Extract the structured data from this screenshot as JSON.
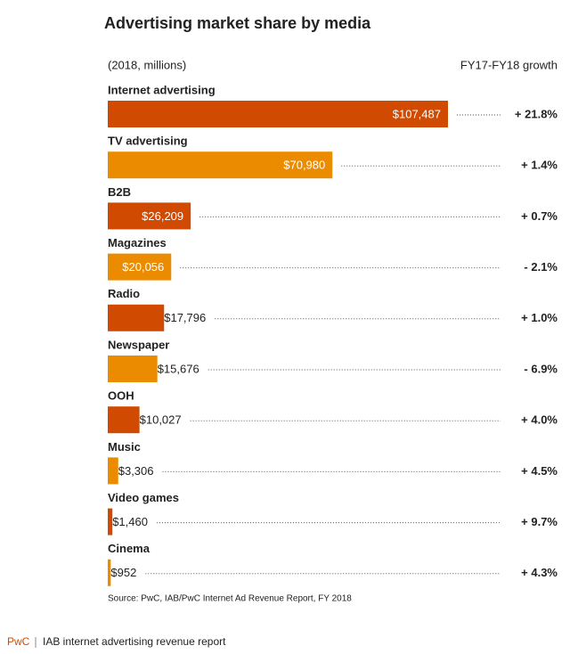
{
  "chart_data": {
    "type": "bar",
    "orientation": "horizontal",
    "title": "Advertising market share by media",
    "subtitle": "(2018, millions)",
    "growth_header": "FY17-FY18 growth",
    "categories": [
      "Internet advertising",
      "TV advertising",
      "B2B",
      "Magazines",
      "Radio",
      "Newspaper",
      "OOH",
      "Music",
      "Video games",
      "Cinema"
    ],
    "values": [
      107487,
      70980,
      26209,
      20056,
      17796,
      15676,
      10027,
      3306,
      1460,
      952
    ],
    "value_labels": [
      "$107,487",
      "$70,980",
      "$26,209",
      "$20,056",
      "$17,796",
      "$15,676",
      "$10,027",
      "$3,306",
      "$1,460",
      "$952"
    ],
    "growth_labels": [
      "+ 21.8%",
      "+ 1.4%",
      "+ 0.7%",
      "- 2.1%",
      "+ 1.0%",
      "- 6.9%",
      "+ 4.0%",
      "+ 4.5%",
      "+ 9.7%",
      "+ 4.3%"
    ],
    "colors": [
      "#d04a02",
      "#eb8c00",
      "#d04a02",
      "#eb8c00",
      "#d04a02",
      "#eb8c00",
      "#d04a02",
      "#eb8c00",
      "#d04a02",
      "#eb8c00"
    ],
    "xlim": [
      0,
      107487
    ],
    "source": "Source: PwC, IAB/PwC Internet Ad Revenue Report, FY 2018",
    "footer_brand": "PwC",
    "footer_text": "IAB internet advertising revenue report"
  }
}
